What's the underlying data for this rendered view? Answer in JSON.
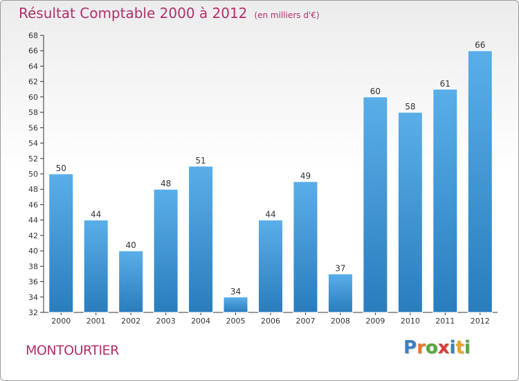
{
  "header": {
    "title": "Résultat Comptable 2000 à 2012",
    "subtitle": "(en milliers d'€)"
  },
  "footer": {
    "commune": "MONTOURTIER",
    "logo_text": "Proxiti",
    "logo_letters": [
      {
        "ch": "P",
        "color": "#3a7fc4"
      },
      {
        "ch": "r",
        "color": "#e8772a"
      },
      {
        "ch": "o",
        "color": "#58a83b"
      },
      {
        "ch": "x",
        "color": "#d93a3a"
      },
      {
        "ch": "i",
        "color": "#3a7fc4"
      },
      {
        "ch": "t",
        "color": "#e8a52a"
      },
      {
        "ch": "i",
        "color": "#58a83b"
      }
    ]
  },
  "chart_data": {
    "type": "bar",
    "title": "Résultat Comptable 2000 à 2012",
    "subtitle": "(en milliers d'€)",
    "categories": [
      "2000",
      "2001",
      "2002",
      "2003",
      "2004",
      "2005",
      "2006",
      "2007",
      "2008",
      "2009",
      "2010",
      "2011",
      "2012"
    ],
    "values": [
      50,
      44,
      40,
      48,
      51,
      34,
      44,
      49,
      37,
      60,
      58,
      61,
      66
    ],
    "ylim": [
      32,
      68
    ],
    "ytick_step": 2,
    "grid": false,
    "bar_color_top": "#5aaee8",
    "bar_color_bottom": "#2a7dbd",
    "axis_color": "#333333",
    "label_color": "#333333"
  }
}
